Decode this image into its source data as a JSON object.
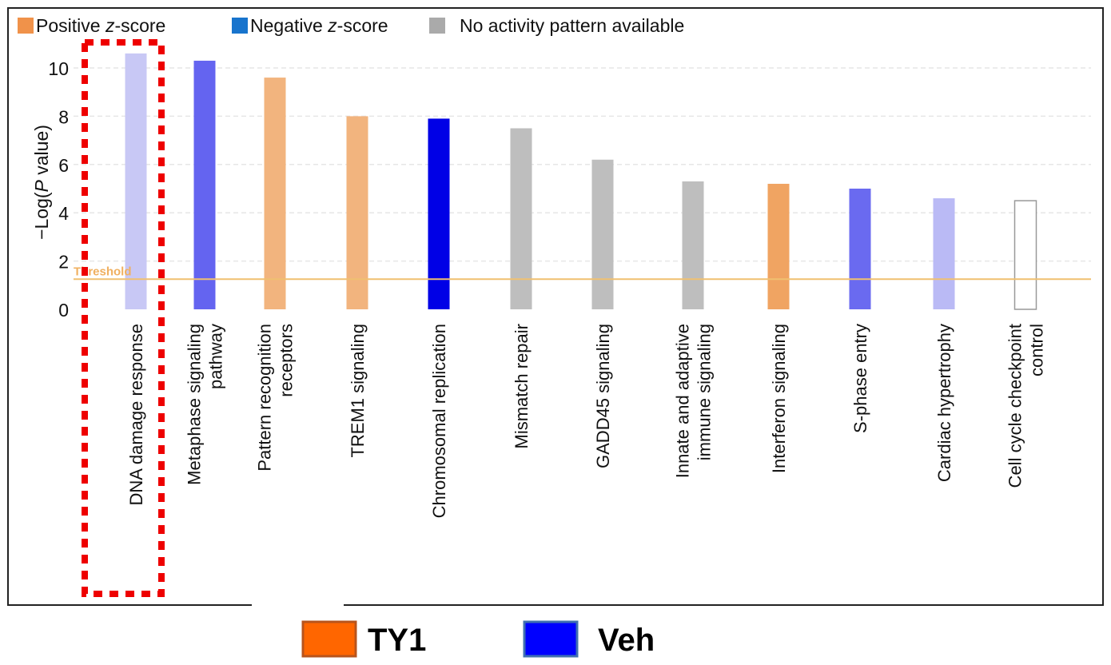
{
  "chart_data": {
    "type": "bar",
    "ylabel_prefix": "−Log(",
    "ylabel_italic": "P",
    "ylabel_suffix": " value)",
    "ylim": [
      0,
      10.8
    ],
    "yticks": [
      0,
      2,
      4,
      6,
      8,
      10
    ],
    "grid": true,
    "threshold": {
      "label": "Threshold",
      "value": 1.25,
      "color": "#f0c070"
    },
    "legend_top": [
      {
        "label_pre": "Positive ",
        "label_italic": "z",
        "label_post": "-score",
        "color": "#f0924a"
      },
      {
        "label_pre": "Negative ",
        "label_italic": "z",
        "label_post": "-score",
        "color": "#1874cd"
      },
      {
        "label_pre": "No activity pattern available",
        "label_italic": "",
        "label_post": "",
        "color": "#aaaaaa"
      }
    ],
    "legend_bottom": [
      {
        "label": "TY1",
        "color": "#ff6600",
        "border": "#b8541c"
      },
      {
        "label": "Veh",
        "color": "#0000ff",
        "border": "#4070b0"
      }
    ],
    "categories": [
      [
        "DNA damage response"
      ],
      [
        "Metaphase signaling",
        "pathway"
      ],
      [
        "Pattern recognition",
        "receptors"
      ],
      [
        "TREM1 signaling"
      ],
      [
        "Chromosomal replication"
      ],
      [
        "Mismatch repair"
      ],
      [
        "GADD45 signaling"
      ],
      [
        "Innate and adaptive",
        "immune signaling"
      ],
      [
        "Interferon signaling"
      ],
      [
        "S-phase entry"
      ],
      [
        "Cardiac hypertrophy"
      ],
      [
        "Cell cycle checkpoint",
        "control"
      ]
    ],
    "values": [
      10.6,
      10.3,
      9.6,
      8.0,
      7.9,
      7.5,
      6.2,
      5.3,
      5.2,
      5.0,
      4.6,
      4.5
    ],
    "colors": [
      "#c8c8f5",
      "#6464f0",
      "#f2b47e",
      "#f2b47e",
      "#0000e6",
      "#bebebe",
      "#bebebe",
      "#bebebe",
      "#f0a462",
      "#6a6af0",
      "#babaf5",
      "#ffffff"
    ],
    "highlight_category": "DNA damage response",
    "highlight_color": "#ee0000"
  }
}
